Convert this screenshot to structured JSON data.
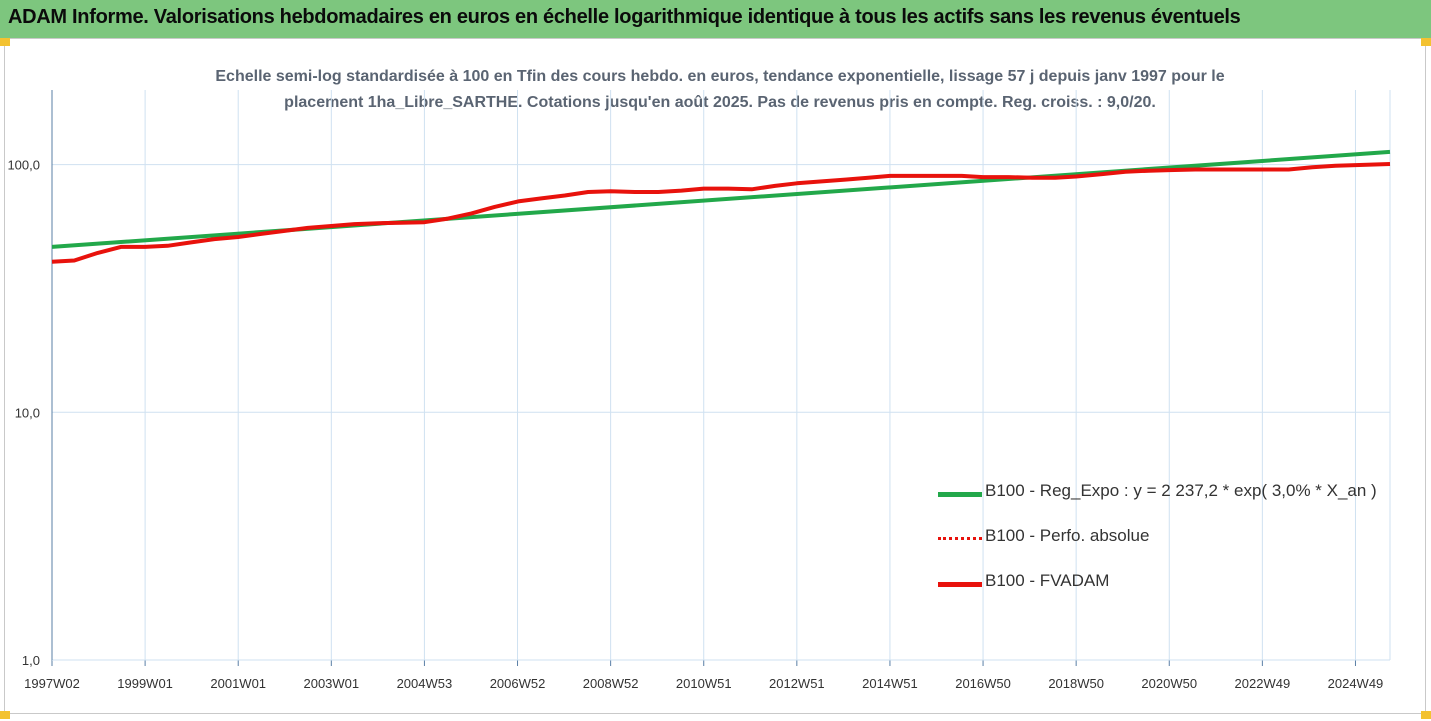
{
  "header": {
    "title": "ADAM Informe. Valorisations hebdomadaires en euros en échelle logarithmique identique à tous les actifs sans les revenus éventuels"
  },
  "chart_data": {
    "type": "line",
    "subtitle_line1": "Echelle semi-log standardisée à 100 en Tfin des cours hebdo. en euros, tendance exponentielle, lissage 57 j depuis janv 1997 pour le",
    "subtitle_line2": "placement 1ha_Libre_SARTHE. Cotations jusqu'en août 2025. Pas de revenus pris en compte. Reg. croiss. : 9,0/20.",
    "y_scale": "log",
    "ylim": [
      1,
      200
    ],
    "y_ticks": [
      {
        "value": 1,
        "label": "1,0"
      },
      {
        "value": 10,
        "label": "10,0"
      },
      {
        "value": 100,
        "label": "100,0"
      }
    ],
    "xlim": [
      "1997-01-08",
      "2025-08-31"
    ],
    "x_ticks": [
      {
        "date": "1997-01-08",
        "label": "1997W02"
      },
      {
        "date": "1999-01-06",
        "label": "1999W01"
      },
      {
        "date": "2001-01-03",
        "label": "2001W01"
      },
      {
        "date": "2003-01-01",
        "label": "2003W01"
      },
      {
        "date": "2004-12-29",
        "label": "2004W53"
      },
      {
        "date": "2006-12-27",
        "label": "2006W52"
      },
      {
        "date": "2008-12-24",
        "label": "2008W52"
      },
      {
        "date": "2010-12-22",
        "label": "2010W51"
      },
      {
        "date": "2012-12-19",
        "label": "2012W51"
      },
      {
        "date": "2014-12-17",
        "label": "2014W51"
      },
      {
        "date": "2016-12-14",
        "label": "2016W50"
      },
      {
        "date": "2018-12-12",
        "label": "2018W50"
      },
      {
        "date": "2020-12-09",
        "label": "2020W50"
      },
      {
        "date": "2022-12-07",
        "label": "2022W49"
      },
      {
        "date": "2024-12-04",
        "label": "2024W49"
      }
    ],
    "grid": {
      "vertical": true,
      "horizontal": true
    },
    "legend_position": "right",
    "series": [
      {
        "name": "B100 - Reg_Expo : y = 2 237,2 * exp( 3,0% *  X_an )",
        "color": "#22a84a",
        "style": "solid",
        "points": [
          [
            "1997-01-08",
            46.5
          ],
          [
            "2025-08-31",
            112.5
          ]
        ]
      },
      {
        "name": "B100 - Perfo. absolue",
        "color": "#e8120c",
        "style": "dotted",
        "points": []
      },
      {
        "name": "B100 - FVADAM",
        "color": "#e8120c",
        "style": "solid",
        "points": [
          [
            "1997-01-08",
            40.5
          ],
          [
            "1997-07-01",
            41
          ],
          [
            "1998-01-01",
            44
          ],
          [
            "1998-07-01",
            46.5
          ],
          [
            "1999-01-06",
            46.5
          ],
          [
            "1999-07-01",
            47
          ],
          [
            "2000-01-01",
            48.5
          ],
          [
            "2000-07-01",
            50
          ],
          [
            "2001-01-03",
            51
          ],
          [
            "2001-07-01",
            52.5
          ],
          [
            "2002-01-01",
            54
          ],
          [
            "2002-07-01",
            55.5
          ],
          [
            "2003-01-01",
            56.5
          ],
          [
            "2003-07-01",
            57.5
          ],
          [
            "2004-01-01",
            58
          ],
          [
            "2004-07-01",
            58.2
          ],
          [
            "2004-12-29",
            58.5
          ],
          [
            "2005-07-01",
            60.5
          ],
          [
            "2006-01-01",
            63.5
          ],
          [
            "2006-07-01",
            67.5
          ],
          [
            "2007-01-01",
            71
          ],
          [
            "2007-07-01",
            73
          ],
          [
            "2008-01-01",
            75
          ],
          [
            "2008-07-01",
            77.5
          ],
          [
            "2008-12-24",
            78
          ],
          [
            "2009-07-01",
            77.5
          ],
          [
            "2010-01-01",
            77.5
          ],
          [
            "2010-07-01",
            78.5
          ],
          [
            "2010-12-22",
            80
          ],
          [
            "2011-07-01",
            80
          ],
          [
            "2012-01-01",
            79.5
          ],
          [
            "2012-07-01",
            82
          ],
          [
            "2012-12-19",
            84
          ],
          [
            "2013-07-01",
            85.5
          ],
          [
            "2014-01-01",
            87
          ],
          [
            "2014-07-01",
            88.5
          ],
          [
            "2014-12-17",
            90
          ],
          [
            "2015-07-01",
            90
          ],
          [
            "2016-01-01",
            90
          ],
          [
            "2016-07-01",
            90
          ],
          [
            "2016-12-14",
            89
          ],
          [
            "2017-07-01",
            89
          ],
          [
            "2018-01-01",
            88.5
          ],
          [
            "2018-07-01",
            88.5
          ],
          [
            "2018-12-12",
            89.5
          ],
          [
            "2019-07-01",
            91.5
          ],
          [
            "2020-01-01",
            93.5
          ],
          [
            "2020-07-01",
            94.5
          ],
          [
            "2020-12-09",
            95
          ],
          [
            "2021-07-01",
            95.5
          ],
          [
            "2022-01-01",
            95.5
          ],
          [
            "2022-07-01",
            95.5
          ],
          [
            "2022-12-07",
            95.5
          ],
          [
            "2023-07-01",
            95.5
          ],
          [
            "2024-01-01",
            97.5
          ],
          [
            "2024-07-01",
            99
          ],
          [
            "2024-12-04",
            99.5
          ],
          [
            "2025-08-31",
            100.5
          ]
        ]
      }
    ]
  },
  "legend": {
    "items": [
      {
        "label": "B100 - Reg_Expo : y = 2 237,2 * exp( 3,0% *  X_an )",
        "color": "#22a84a",
        "style": "solid"
      },
      {
        "label": "B100 - Perfo. absolue",
        "color": "#e8120c",
        "style": "dotted"
      },
      {
        "label": "B100 - FVADAM",
        "color": "#e8120c",
        "style": "solid"
      }
    ]
  }
}
